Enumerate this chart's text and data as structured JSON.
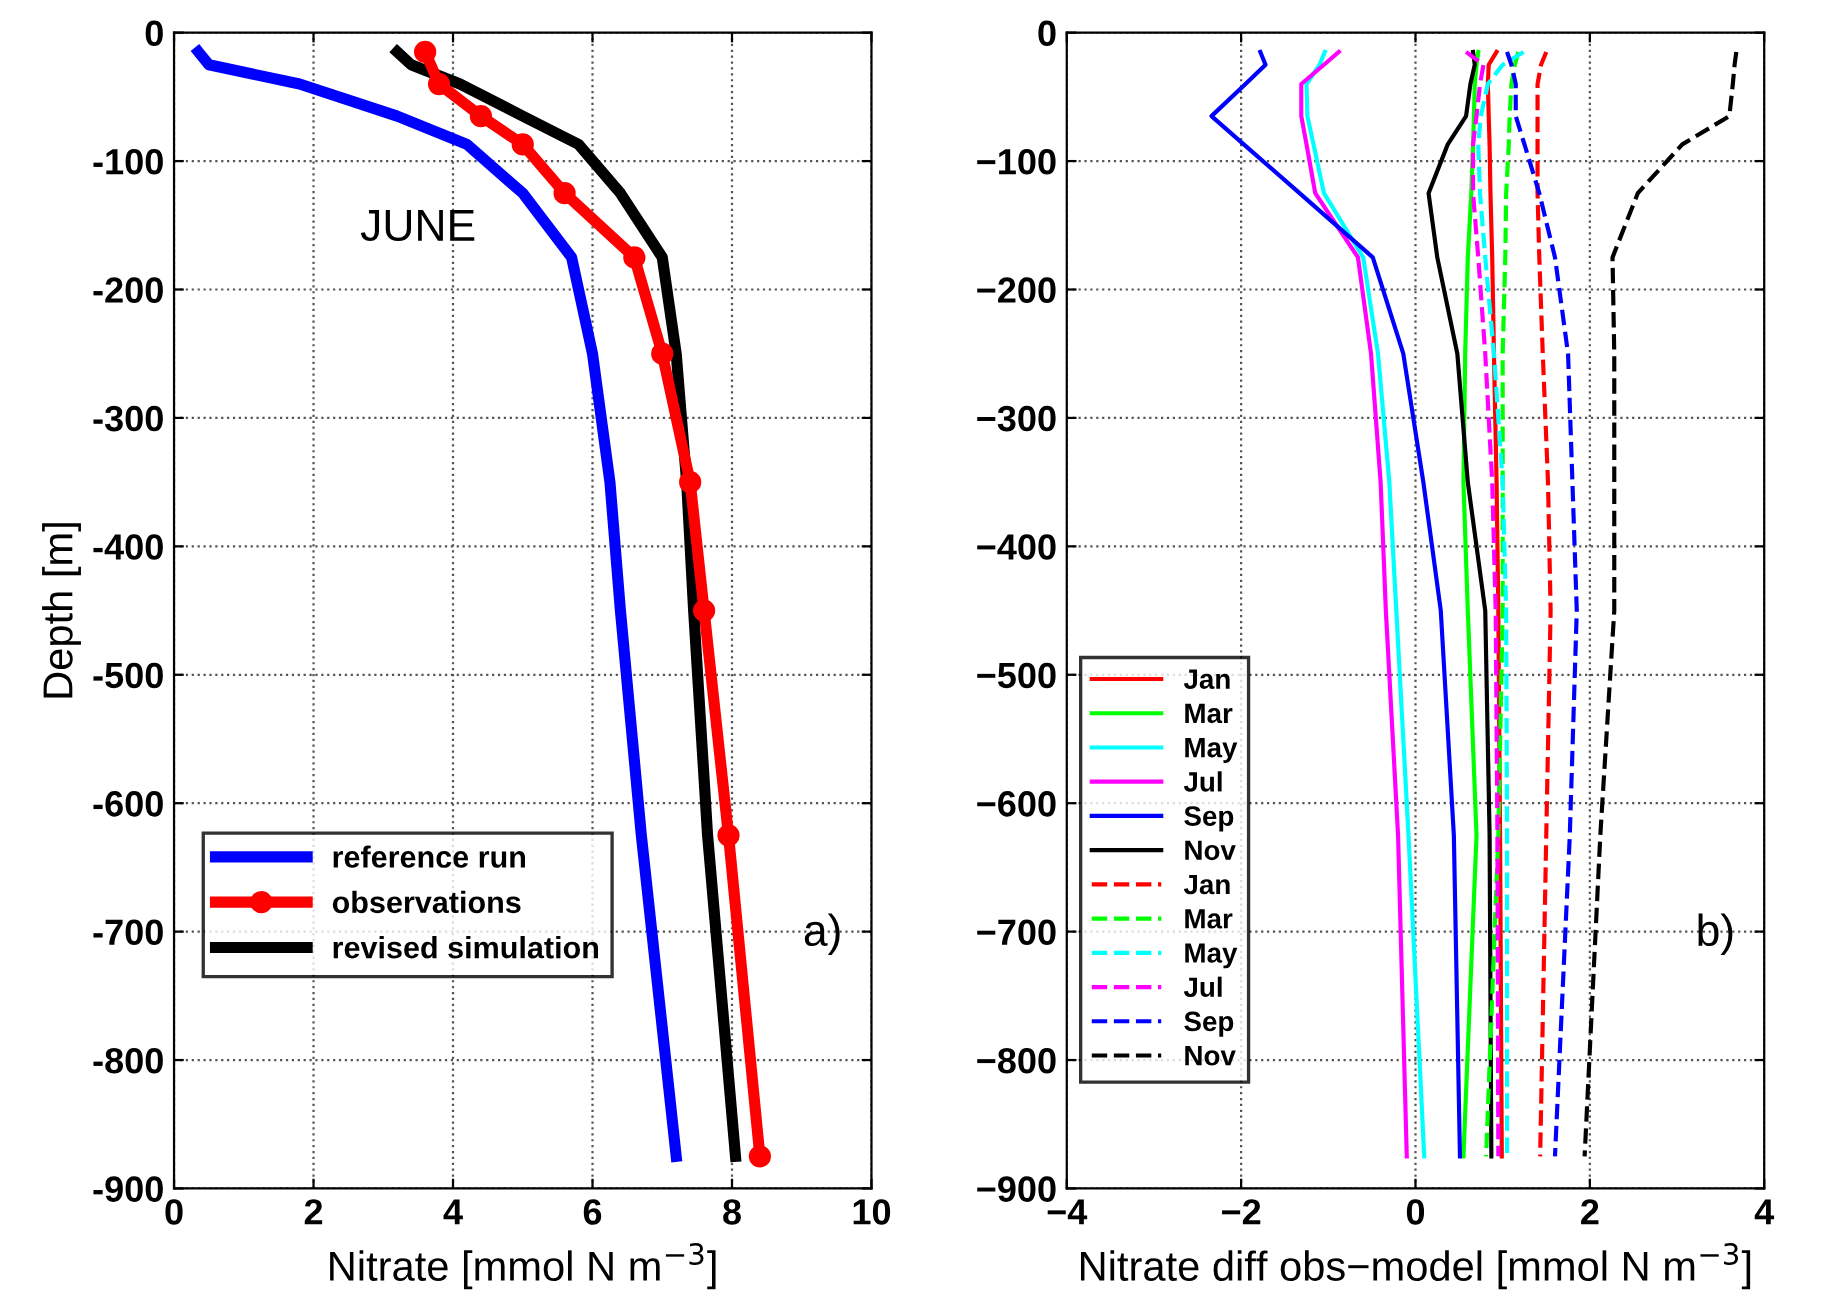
{
  "chart_data": [
    {
      "type": "line",
      "xlabel": "Nitrate [mmol N m$^{−3}$]",
      "ylabel": "Depth [m]",
      "xlim": [
        0,
        10
      ],
      "xticks": [
        0,
        2,
        4,
        6,
        8,
        10
      ],
      "ylim": [
        -900,
        0
      ],
      "yticks": [
        -900,
        -800,
        -700,
        -600,
        -500,
        -400,
        -300,
        -200,
        -100,
        0
      ],
      "grid": true,
      "legend": "bottom left",
      "annotations": [
        "JUNE",
        "a)"
      ],
      "series": [
        {
          "name": "reference run",
          "color": "#0000ff",
          "line_style": "solid",
          "marker": "none",
          "x": [
            0.35,
            0.5,
            1.8,
            3.2,
            4.2,
            5.0,
            5.7,
            6.0,
            6.25,
            6.4,
            6.7,
            7.2
          ],
          "values": [
            -15,
            -25,
            -40,
            -65,
            -87,
            -125,
            -175,
            -250,
            -350,
            -450,
            -625,
            -875
          ]
        },
        {
          "name": "observations",
          "color": "#ff0000",
          "line_style": "solid",
          "marker": "circle",
          "x": [
            3.6,
            3.8,
            4.4,
            5.0,
            5.6,
            6.6,
            7.0,
            7.4,
            7.6,
            7.95,
            8.4
          ],
          "values": [
            -15,
            -40,
            -65,
            -87,
            -125,
            -175,
            -250,
            -350,
            -450,
            -625,
            -875
          ]
        },
        {
          "name": "revised simulation",
          "color": "#000000",
          "line_style": "solid",
          "marker": "none",
          "x": [
            3.2,
            3.4,
            4.1,
            5.0,
            5.8,
            6.4,
            7.0,
            7.2,
            7.35,
            7.45,
            7.65,
            8.05
          ],
          "values": [
            -15,
            -25,
            -40,
            -65,
            -87,
            -125,
            -175,
            -250,
            -350,
            -450,
            -625,
            -875
          ]
        }
      ]
    },
    {
      "type": "line",
      "xlabel": "Nitrate diff obs−model [mmol N m$^{−3}$]",
      "xlim": [
        -4,
        4
      ],
      "xticks": [
        {
          "value": -4,
          "label": "−4"
        },
        {
          "value": -2,
          "label": "−2"
        },
        0,
        2,
        4
      ],
      "ylim": [
        -900,
        0
      ],
      "yticks": [
        {
          "value": -900,
          "label": "−900"
        },
        {
          "value": -800,
          "label": "−800"
        },
        {
          "value": -700,
          "label": "−700"
        },
        {
          "value": -600,
          "label": "−600"
        },
        {
          "value": -500,
          "label": "−500"
        },
        {
          "value": -400,
          "label": "−400"
        },
        {
          "value": -300,
          "label": "−300"
        },
        {
          "value": -200,
          "label": "−200"
        },
        {
          "value": -100,
          "label": "−100"
        },
        0
      ],
      "grid": true,
      "legend": "bottom left",
      "annotations": [
        "b)"
      ],
      "series": [
        {
          "name": "Jan",
          "color": "#ff0000",
          "line_style": "solid",
          "x": [
            0.93,
            0.84,
            0.83,
            0.84,
            0.85,
            0.86,
            0.88,
            0.9,
            0.93,
            0.95,
            0.97,
            0.99
          ],
          "values": [
            -15,
            -25,
            -40,
            -65,
            -87,
            -125,
            -175,
            -250,
            -350,
            -450,
            -625,
            -875
          ]
        },
        {
          "name": "Mar",
          "color": "#00ff00",
          "line_style": "solid",
          "x": [
            0.72,
            0.7,
            0.68,
            0.67,
            0.66,
            0.64,
            0.6,
            0.57,
            0.55,
            0.6,
            0.7,
            0.55
          ],
          "values": [
            -15,
            -25,
            -40,
            -65,
            -87,
            -125,
            -175,
            -250,
            -350,
            -450,
            -625,
            -875
          ]
        },
        {
          "name": "May",
          "color": "#00ffff",
          "line_style": "solid",
          "x": [
            -1.04,
            -1.1,
            -1.25,
            -1.24,
            -1.17,
            -1.05,
            -0.6,
            -0.43,
            -0.3,
            -0.22,
            -0.08,
            0.1
          ],
          "values": [
            -15,
            -25,
            -40,
            -65,
            -87,
            -125,
            -175,
            -250,
            -350,
            -450,
            -625,
            -875
          ]
        },
        {
          "name": "Jul",
          "color": "#ff00ff",
          "line_style": "solid",
          "x": [
            -0.88,
            -1.05,
            -1.31,
            -1.31,
            -1.25,
            -1.15,
            -0.66,
            -0.51,
            -0.4,
            -0.34,
            -0.2,
            -0.1
          ],
          "values": [
            -15,
            -25,
            -40,
            -65,
            -87,
            -125,
            -175,
            -250,
            -350,
            -450,
            -625,
            -875
          ]
        },
        {
          "name": "Sep",
          "color": "#0000ff",
          "line_style": "solid",
          "x": [
            -1.78,
            -1.72,
            -1.95,
            -2.34,
            -1.97,
            -1.33,
            -0.49,
            -0.14,
            0.09,
            0.29,
            0.44,
            0.51
          ],
          "values": [
            -15,
            -25,
            -40,
            -65,
            -87,
            -125,
            -175,
            -250,
            -350,
            -450,
            -625,
            -875
          ]
        },
        {
          "name": "Nov",
          "color": "#000000",
          "line_style": "solid",
          "x": [
            0.66,
            0.68,
            0.63,
            0.58,
            0.37,
            0.15,
            0.25,
            0.48,
            0.6,
            0.8,
            0.85,
            0.87
          ],
          "values": [
            -15,
            -25,
            -40,
            -65,
            -87,
            -125,
            -175,
            -250,
            -350,
            -450,
            -625,
            -875
          ]
        },
        {
          "name": "Jan",
          "color": "#ff0000",
          "line_style": "dashed",
          "x": [
            1.5,
            1.44,
            1.4,
            1.4,
            1.4,
            1.4,
            1.42,
            1.46,
            1.52,
            1.55,
            1.5,
            1.43
          ],
          "values": [
            -15,
            -25,
            -40,
            -65,
            -87,
            -125,
            -175,
            -250,
            -350,
            -450,
            -625,
            -875
          ]
        },
        {
          "name": "Mar",
          "color": "#00ff00",
          "line_style": "dashed",
          "x": [
            1.18,
            1.14,
            1.1,
            1.08,
            1.07,
            1.04,
            1.03,
            1.0,
            1.0,
            1.0,
            0.95,
            0.81
          ],
          "values": [
            -15,
            -25,
            -40,
            -65,
            -87,
            -125,
            -175,
            -250,
            -350,
            -450,
            -625,
            -875
          ]
        },
        {
          "name": "May",
          "color": "#00ffff",
          "line_style": "dashed",
          "x": [
            1.24,
            1.0,
            0.83,
            0.75,
            0.72,
            0.74,
            0.8,
            0.9,
            1.0,
            1.04,
            1.05,
            1.05
          ],
          "values": [
            -15,
            -25,
            -40,
            -65,
            -87,
            -125,
            -175,
            -250,
            -350,
            -450,
            -625,
            -875
          ]
        },
        {
          "name": "Jul",
          "color": "#ff00ff",
          "line_style": "dashed",
          "x": [
            0.58,
            0.78,
            0.74,
            0.7,
            0.66,
            0.66,
            0.72,
            0.8,
            0.88,
            0.92,
            0.94,
            0.95
          ],
          "values": [
            -15,
            -25,
            -40,
            -65,
            -87,
            -125,
            -175,
            -250,
            -350,
            -450,
            -625,
            -875
          ]
        },
        {
          "name": "Sep",
          "color": "#0000ff",
          "line_style": "dashed",
          "x": [
            1.05,
            1.1,
            1.15,
            1.15,
            1.25,
            1.42,
            1.6,
            1.75,
            1.8,
            1.85,
            1.77,
            1.6
          ],
          "values": [
            -15,
            -25,
            -40,
            -65,
            -87,
            -125,
            -175,
            -250,
            -350,
            -450,
            -625,
            -875
          ]
        },
        {
          "name": "Nov",
          "color": "#000000",
          "line_style": "dashed",
          "x": [
            3.68,
            3.66,
            3.64,
            3.6,
            3.06,
            2.55,
            2.26,
            2.28,
            2.28,
            2.28,
            2.12,
            1.94
          ],
          "values": [
            -15,
            -25,
            -40,
            -65,
            -87,
            -125,
            -175,
            -250,
            -350,
            -450,
            -625,
            -875
          ]
        }
      ]
    }
  ]
}
